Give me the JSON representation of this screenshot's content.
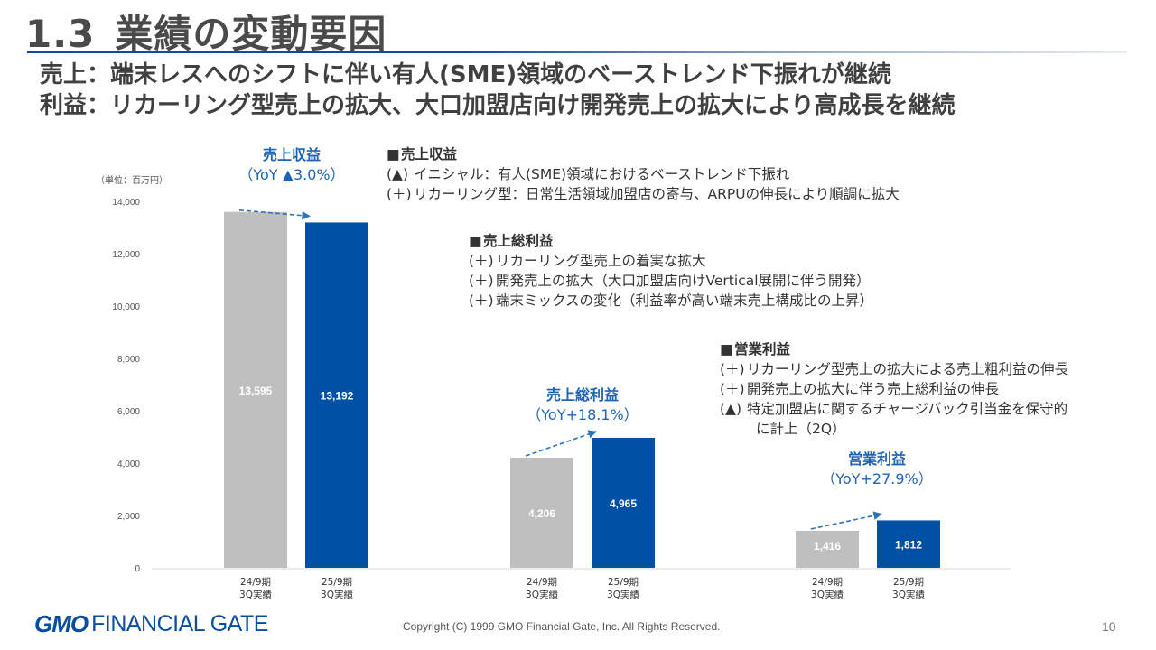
{
  "header": {
    "number": "1.3",
    "title": "業績の変動要因",
    "line1": "売上：端末レスへのシフトに伴い有人(SME)領域のベーストレンド下振れが継続",
    "line2": "利益：リカーリング型売上の拡大、大口加盟店向け開発売上の拡大により高成長を継続"
  },
  "colors": {
    "prev": "#bfbfbf",
    "curr": "#0050a5",
    "accent": "#1e64b4",
    "arrow": "#2e75b6"
  },
  "chart_data": {
    "type": "bar",
    "unit_label": "（単位：百万円）",
    "ylim": [
      0,
      14000
    ],
    "yticks": [
      "0",
      "2,000",
      "4,000",
      "6,000",
      "8,000",
      "10,000",
      "12,000",
      "14,000"
    ],
    "grid": false,
    "groups": [
      {
        "name": "売上収益",
        "yoy": "（YoY ▲3.0%）",
        "bars": [
          {
            "label": "24/9期 3Q実績",
            "line1": "24/9期",
            "line2": "3Q実績",
            "value": 13595,
            "value_label": "13,595"
          },
          {
            "label": "25/9期 3Q実績",
            "line1": "25/9期",
            "line2": "3Q実績",
            "value": 13192,
            "value_label": "13,192"
          }
        ]
      },
      {
        "name": "売上総利益",
        "yoy": "（YoY+18.1%）",
        "bars": [
          {
            "label": "24/9期 3Q実績",
            "line1": "24/9期",
            "line2": "3Q実績",
            "value": 4206,
            "value_label": "4,206"
          },
          {
            "label": "25/9期 3Q実績",
            "line1": "25/9期",
            "line2": "3Q実績",
            "value": 4965,
            "value_label": "4,965"
          }
        ]
      },
      {
        "name": "営業利益",
        "yoy": "（YoY+27.9%）",
        "bars": [
          {
            "label": "24/9期 3Q実績",
            "line1": "24/9期",
            "line2": "3Q実績",
            "value": 1416,
            "value_label": "1,416"
          },
          {
            "label": "25/9期 3Q実績",
            "line1": "25/9期",
            "line2": "3Q実績",
            "value": 1812,
            "value_label": "1,812"
          }
        ]
      }
    ]
  },
  "notes": {
    "revenue": {
      "title": "売上収益",
      "items": [
        {
          "mark": "(▲)",
          "text": "イニシャル：有人(SME)領域におけるベーストレンド下振れ"
        },
        {
          "mark": "(＋)",
          "text": "リカーリング型：日常生活領域加盟店の寄与、ARPUの伸長により順調に拡大"
        }
      ]
    },
    "gross": {
      "title": "売上総利益",
      "items": [
        {
          "mark": "(＋)",
          "text": "リカーリング型売上の着実な拡大"
        },
        {
          "mark": "(＋)",
          "text": "開発売上の拡大（大口加盟店向けVertical展開に伴う開発）"
        },
        {
          "mark": "(＋)",
          "text": "端末ミックスの変化（利益率が高い端末売上構成比の上昇）"
        }
      ]
    },
    "operating": {
      "title": "営業利益",
      "items": [
        {
          "mark": "(＋)",
          "text": "リカーリング型売上の拡大による売上粗利益の伸長"
        },
        {
          "mark": "(＋)",
          "text": "開発売上の拡大に伴う売上総利益の伸長"
        },
        {
          "mark": "(▲)",
          "text": "特定加盟店に関するチャージバック引当金を保守的"
        }
      ],
      "continuation": "に計上（2Q）"
    }
  },
  "footer": {
    "logo_gmo": "GMO",
    "logo_fg": "FINANCIAL GATE",
    "copyright": "Copyright (C) 1999 GMO Financial Gate, Inc. All Rights Reserved.",
    "page": "10"
  }
}
